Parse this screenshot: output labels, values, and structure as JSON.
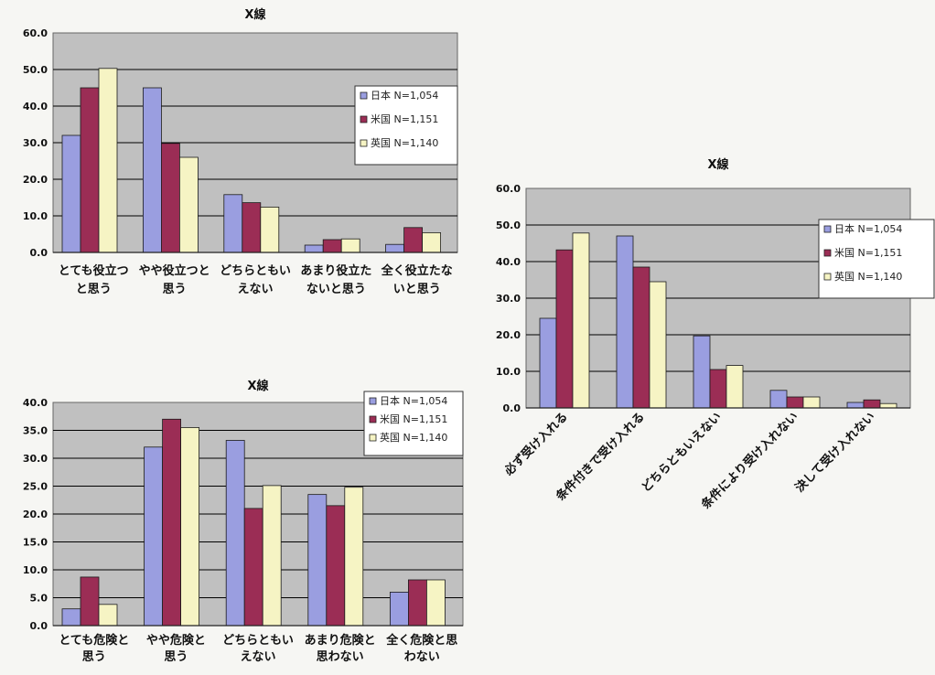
{
  "colors": {
    "japan": "#9a9ee0",
    "usa": "#9b2d55",
    "uk": "#f6f4c4",
    "plot_bg": "#c0c0c0",
    "grid": "#000000",
    "bar_edge": "#1a1a1a"
  },
  "chart_data": [
    {
      "type": "bar",
      "title": "X線",
      "categories": [
        "とても役立つと思う",
        "やや役立つと思う",
        "どちらともいえない",
        "あまり役立たないと思う",
        "全く役立たないと思う"
      ],
      "category_lines": [
        [
          "とても役立つ",
          "と思う"
        ],
        [
          "やや役立つと",
          "思う"
        ],
        [
          "どちらともい",
          "えない"
        ],
        [
          "あまり役立た",
          "ないと思う"
        ],
        [
          "全く役立たな",
          "いと思う"
        ]
      ],
      "series": [
        {
          "name": "日本 N=1,054",
          "color": "#9a9ee0",
          "values": [
            32.0,
            45.0,
            15.8,
            2.0,
            2.2
          ]
        },
        {
          "name": "米国 N=1,151",
          "color": "#9b2d55",
          "values": [
            45.0,
            29.8,
            13.6,
            3.5,
            6.8
          ]
        },
        {
          "name": "英国 N=1,140",
          "color": "#f6f4c4",
          "values": [
            50.3,
            26.0,
            12.4,
            3.7,
            5.4
          ]
        }
      ],
      "yticks": [
        "0.0",
        "10.0",
        "20.0",
        "30.0",
        "40.0",
        "50.0",
        "60.0"
      ],
      "ylim": [
        0,
        60
      ],
      "legend_position": "right",
      "grid": true
    },
    {
      "type": "bar",
      "title": "X線",
      "categories": [
        "必ず受け入れる",
        "条件付きで受け入れる",
        "どちらともいえない",
        "条件により受け入れない",
        "決して受け入れない"
      ],
      "series": [
        {
          "name": "日本 N=1,054",
          "color": "#9a9ee0",
          "values": [
            24.5,
            47.0,
            19.7,
            4.8,
            1.5
          ]
        },
        {
          "name": "米国 N=1,151",
          "color": "#9b2d55",
          "values": [
            43.2,
            38.5,
            10.5,
            3.0,
            2.2
          ]
        },
        {
          "name": "英国 N=1,140",
          "color": "#f6f4c4",
          "values": [
            47.8,
            34.5,
            11.6,
            3.0,
            1.2
          ]
        }
      ],
      "yticks": [
        "0.0",
        "10.0",
        "20.0",
        "30.0",
        "40.0",
        "50.0",
        "60.0"
      ],
      "ylim": [
        0,
        60
      ],
      "legend_position": "right",
      "grid": true
    },
    {
      "type": "bar",
      "title": "X線",
      "categories": [
        "とても危険と思う",
        "やや危険と思う",
        "どちらともいえない",
        "あまり危険と思わない",
        "全く危険と思わない"
      ],
      "category_lines": [
        [
          "とても危険と",
          "思う"
        ],
        [
          "やや危険と",
          "思う"
        ],
        [
          "どちらともい",
          "えない"
        ],
        [
          "あまり危険と",
          "思わない"
        ],
        [
          "全く危険と思",
          "わない"
        ]
      ],
      "series": [
        {
          "name": "日本 N=1,054",
          "color": "#9a9ee0",
          "values": [
            3.0,
            32.0,
            33.2,
            23.5,
            6.0
          ]
        },
        {
          "name": "米国 N=1,151",
          "color": "#9b2d55",
          "values": [
            8.7,
            37.0,
            21.0,
            21.5,
            8.2
          ]
        },
        {
          "name": "英国 N=1,140",
          "color": "#f6f4c4",
          "values": [
            3.8,
            35.5,
            25.1,
            24.8,
            8.2
          ]
        }
      ],
      "yticks": [
        "0.0",
        "5.0",
        "10.0",
        "15.0",
        "20.0",
        "25.0",
        "30.0",
        "35.0",
        "40.0"
      ],
      "ylim": [
        0,
        40
      ],
      "legend_position": "top-right",
      "grid": true
    }
  ]
}
